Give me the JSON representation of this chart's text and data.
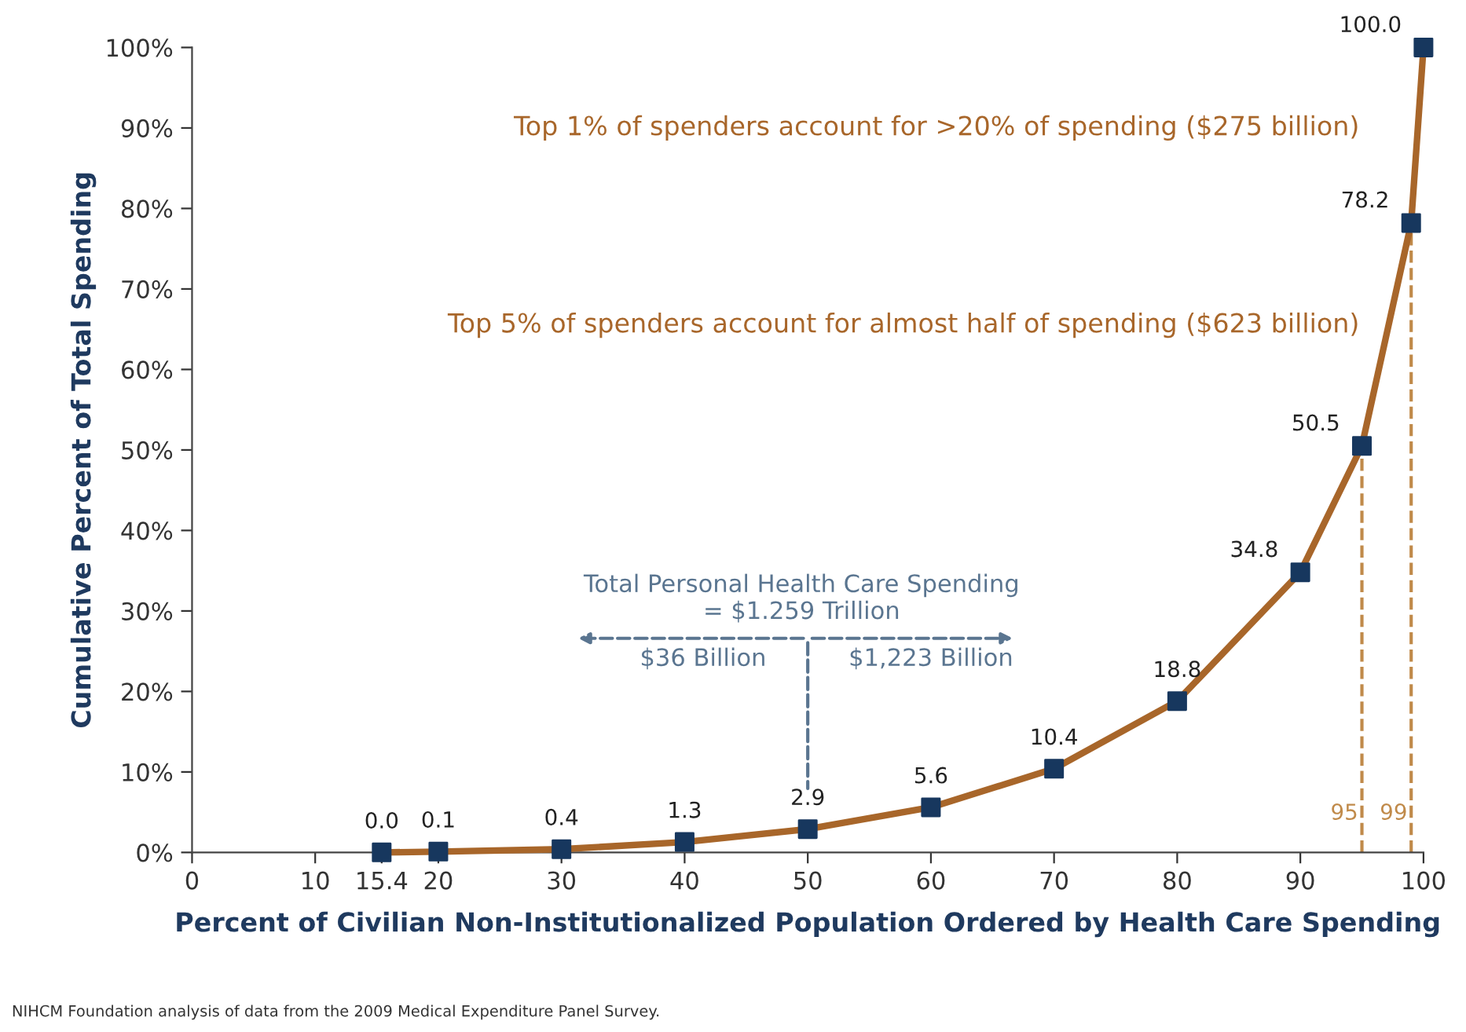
{
  "chart_data": {
    "type": "line",
    "xlabel": "Percent of Civilian Non-Institutionalized Population Ordered by Health Care Spending",
    "ylabel": "Cumulative Percent of Total Spending",
    "x": [
      15.4,
      20,
      30,
      40,
      50,
      60,
      70,
      80,
      90,
      95,
      99,
      100
    ],
    "series": [
      {
        "color": "#a8662a",
        "colors": [
          "#17375e",
          "#17375e",
          "#17375e",
          "#17375e",
          "#17375e",
          "#17375e",
          "#17375e",
          "#17375e",
          "#17375e",
          "#17375e",
          "#17375e",
          "#17375e"
        ],
        "values": [
          0.0,
          0.1,
          0.4,
          1.3,
          2.9,
          5.6,
          10.4,
          18.8,
          34.8,
          50.5,
          78.2,
          100.0
        ],
        "value_labels": [
          "0.0",
          "0.1",
          "0.4",
          "1.3",
          "2.9",
          "5.6",
          "10.4",
          "18.8",
          "34.8",
          "50.5",
          "78.2",
          "100.0"
        ]
      }
    ],
    "marker": "square",
    "xlim": [
      0,
      100
    ],
    "ylim": [
      0,
      100
    ],
    "xticks": [
      0,
      10,
      {
        "value": 15.4,
        "label": "15.4"
      },
      20,
      30,
      40,
      50,
      60,
      70,
      80,
      90,
      100
    ],
    "yticks": [
      {
        "value": 0,
        "label": "0%"
      },
      {
        "value": 10,
        "label": "10%"
      },
      {
        "value": 20,
        "label": "20%"
      },
      {
        "value": 30,
        "label": "30%"
      },
      {
        "value": 40,
        "label": "40%"
      },
      {
        "value": 50,
        "label": "50%"
      },
      {
        "value": 60,
        "label": "60%"
      },
      {
        "value": 70,
        "label": "70%"
      },
      {
        "value": 80,
        "label": "80%"
      },
      {
        "value": 90,
        "label": "90%"
      },
      {
        "value": 100,
        "label": "100%"
      }
    ],
    "grid": false,
    "ref_lines": [
      {
        "axis": "x",
        "value": 95,
        "label": "95",
        "color": "#c08a4a",
        "line_style": "dashed"
      },
      {
        "axis": "x",
        "value": 99,
        "label": "99",
        "color": "#c08a4a",
        "line_style": "dashed"
      }
    ],
    "annotations": [
      "Top 1% of spenders account for >20% of spending ($275 billion)",
      "Top 5% of spenders account for almost half of spending ($623 billion)",
      "Total Personal Health Care Spending\n= $1.259 Trillion",
      "$36 Billion",
      "$1,223 Billion",
      "NIHCM Foundation analysis of data from the 2009 Medical Expenditure Panel Survey."
    ]
  }
}
